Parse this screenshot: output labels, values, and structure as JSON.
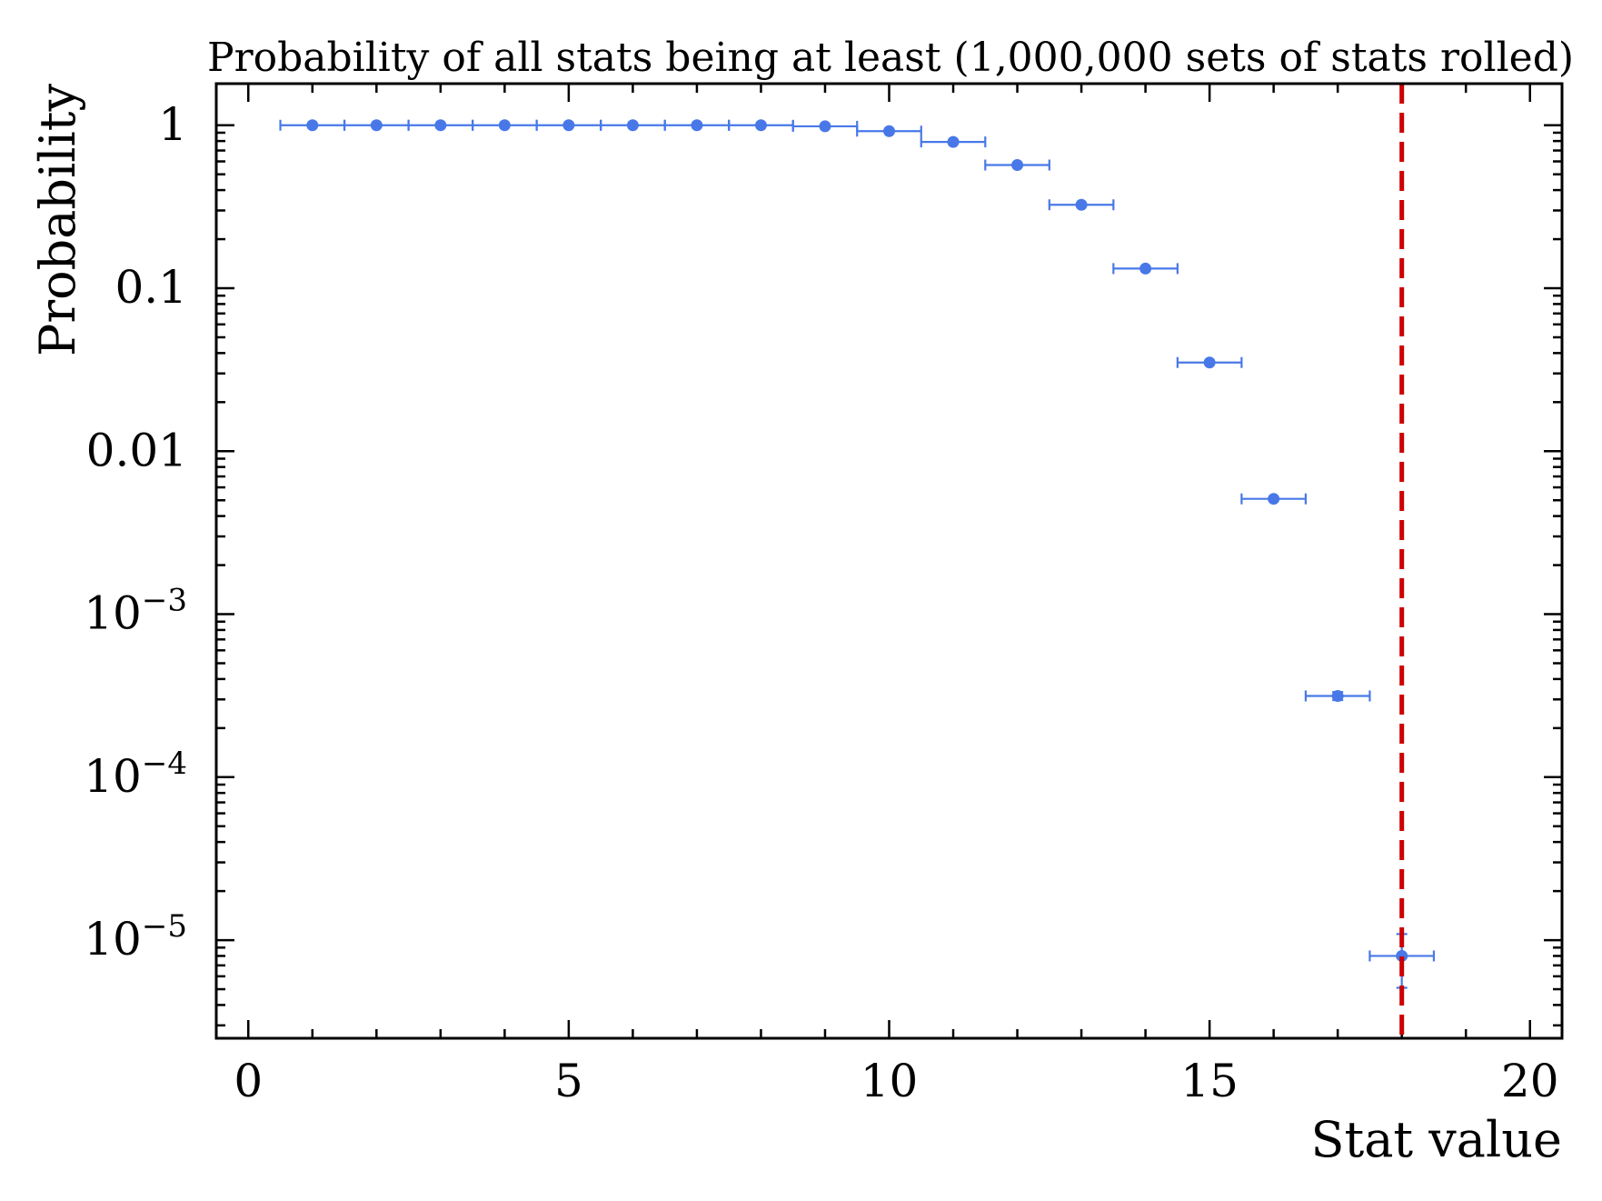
{
  "chart_data": {
    "type": "scatter",
    "title": "Probability of all stats being at least (1,000,000 sets of stats rolled)",
    "xlabel": "Stat value",
    "ylabel": "Probability",
    "xlim": [
      -0.5,
      20.5
    ],
    "ylim": [
      2.5e-06,
      1.8
    ],
    "yscale": "log",
    "x_ticks": [
      0,
      5,
      10,
      15,
      20
    ],
    "x_tick_labels": [
      "0",
      "5",
      "10",
      "15",
      "20"
    ],
    "y_ticks": [
      {
        "value": 1,
        "base": "1",
        "exp": ""
      },
      {
        "value": 0.1,
        "base": "0.1",
        "exp": ""
      },
      {
        "value": 0.01,
        "base": "0.01",
        "exp": ""
      },
      {
        "value": 0.001,
        "base": "10",
        "exp": "−3"
      },
      {
        "value": 0.0001,
        "base": "10",
        "exp": "−4"
      },
      {
        "value": 1e-05,
        "base": "10",
        "exp": "−5"
      }
    ],
    "grid": false,
    "series": [
      {
        "color": "#4878e8",
        "x": [
          1,
          2,
          3,
          4,
          5,
          6,
          7,
          8,
          9,
          10,
          11,
          12,
          13,
          14,
          15,
          16,
          17,
          18
        ],
        "y": [
          1.0,
          1.0,
          1.0,
          1.0,
          1.0,
          1.0,
          1.0,
          0.9998,
          0.985,
          0.92,
          0.79,
          0.57,
          0.325,
          0.132,
          0.035,
          0.0051,
          0.000315,
          8e-06
        ],
        "xerr": 0.5,
        "yerr_high": [
          0,
          0,
          0,
          0,
          0,
          0,
          0,
          0,
          0,
          0,
          0,
          0,
          0,
          0,
          0,
          0,
          1.8e-05,
          2.9e-06
        ],
        "yerr_low": [
          0,
          0,
          0,
          0,
          0,
          0,
          0,
          0,
          0,
          0,
          0,
          0,
          0,
          0,
          0,
          0,
          1.8e-05,
          2.9e-06
        ]
      }
    ],
    "reference_line": {
      "x": 18,
      "color": "#cc0000",
      "style": "dashed"
    }
  }
}
